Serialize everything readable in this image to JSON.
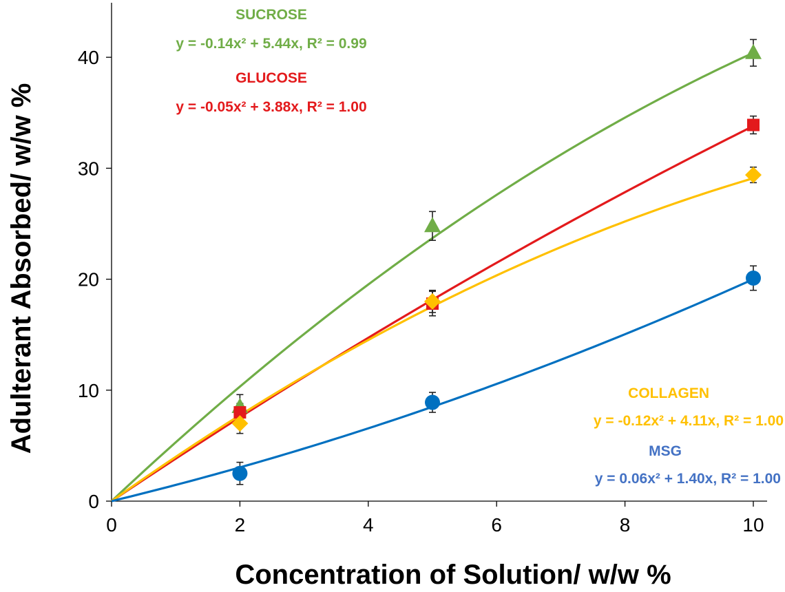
{
  "chart_data": {
    "type": "scatter",
    "xlabel": "Concentration of Solution/ w/w %",
    "ylabel": "Adulterant Absorbed/ w/w %",
    "xlim": [
      0,
      10
    ],
    "ylim": [
      0,
      45
    ],
    "xticks": [
      0,
      2,
      4,
      6,
      8,
      10
    ],
    "yticks": [
      0,
      10,
      20,
      30,
      40
    ],
    "grid": false,
    "series": [
      {
        "name": "SUCROSE",
        "color": "#70ad47",
        "marker": "triangle",
        "x": [
          2,
          5,
          10
        ],
        "y": [
          8.5,
          24.8,
          40.4
        ],
        "err": [
          1.1,
          1.3,
          1.2
        ],
        "fit": {
          "a": -0.14,
          "b": 5.44
        },
        "equation": "y = -0.14x² + 5.44x, R² = 0.99"
      },
      {
        "name": "GLUCOSE",
        "color": "#e31a1c",
        "marker": "square",
        "x": [
          2,
          5,
          10
        ],
        "y": [
          8.0,
          17.8,
          33.9
        ],
        "err": [
          0.8,
          1.1,
          0.8
        ],
        "fit": {
          "a": -0.05,
          "b": 3.88
        },
        "equation": "y = -0.05x² + 3.88x, R² = 1.00"
      },
      {
        "name": "COLLAGEN",
        "color": "#ffc000",
        "marker": "diamond",
        "x": [
          2,
          5,
          10
        ],
        "y": [
          7.0,
          18.0,
          29.4
        ],
        "err": [
          0.9,
          1.0,
          0.7
        ],
        "fit": {
          "a": -0.12,
          "b": 4.11
        },
        "equation": "y = -0.12x² + 4.11x, R² = 1.00"
      },
      {
        "name": "MSG",
        "color": "#0070c0",
        "marker": "circle",
        "x": [
          2,
          5,
          10
        ],
        "y": [
          2.5,
          8.9,
          20.1
        ],
        "err": [
          1.0,
          0.9,
          1.1
        ],
        "fit": {
          "a": 0.06,
          "b": 1.4
        },
        "equation": "y = 0.06x² + 1.40x, R² = 1.00",
        "label_color": "#4472c4"
      }
    ]
  }
}
